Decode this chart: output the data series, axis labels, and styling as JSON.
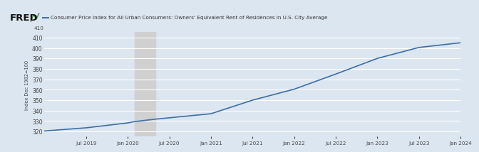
{
  "title": "Consumer Price Index for All Urban Consumers: Owners' Equivalent Rent of Residences in U.S. City Average",
  "ylabel": "Index Dec 1982=100",
  "line_color": "#3d6ea8",
  "line_width": 1.2,
  "bg_color": "#dce6f0",
  "plot_bg_color": "#dce6f0",
  "recession_color": "#d0d0d0",
  "ylim_bottom": 315,
  "ylim_top": 415,
  "yticks": [
    320,
    330,
    340,
    350,
    360,
    370,
    380,
    390,
    400,
    410
  ],
  "header_bg": "#c8d8e8",
  "x_tick_labels": [
    "Jul 2019",
    "Jan 2020",
    "Jul 2020",
    "Jan 2021",
    "Jul 2021",
    "Jan 2022",
    "Jul 2022",
    "Jan 2023",
    "Jul 2023",
    "Jan 2024"
  ],
  "x_tick_positions_months": [
    6,
    12,
    18,
    24,
    30,
    36,
    42,
    48,
    54,
    60
  ],
  "recession_x_start": 13,
  "recession_x_end": 16,
  "key_x": [
    0,
    6,
    12,
    13,
    16,
    24,
    30,
    36,
    42,
    48,
    54,
    60
  ],
  "key_y": [
    320.5,
    323.5,
    328.2,
    329.5,
    331.8,
    337.0,
    350.0,
    360.5,
    375.0,
    390.0,
    400.5,
    405.0
  ]
}
